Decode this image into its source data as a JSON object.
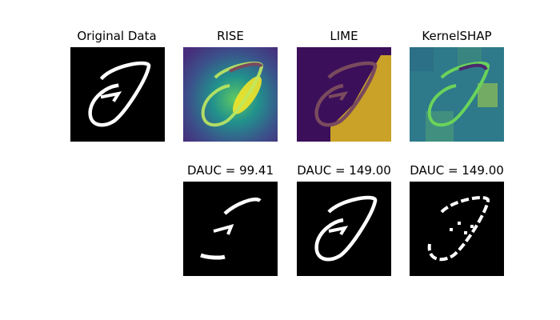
{
  "figure": {
    "top_row": [
      {
        "key": "original",
        "title": "Original Data"
      },
      {
        "key": "rise",
        "title": "RISE"
      },
      {
        "key": "lime",
        "title": "LIME"
      },
      {
        "key": "kernelshap",
        "title": "KernelSHAP"
      }
    ],
    "bottom_row": [
      {
        "key": "rise_masked",
        "title": "DAUC = 99.41"
      },
      {
        "key": "lime_masked",
        "title": "DAUC = 149.00"
      },
      {
        "key": "kernelshap_masked",
        "title": "DAUC = 149.00"
      }
    ],
    "colors": {
      "background_black": "#000000",
      "stroke_white": "#ffffff",
      "viridis_dark": "#440154",
      "viridis_teal": "#21918c",
      "viridis_green": "#5ec962",
      "viridis_yellow": "#fde725",
      "lime_purple": "#3b0f5a",
      "lime_gold": "#c9a227"
    }
  }
}
